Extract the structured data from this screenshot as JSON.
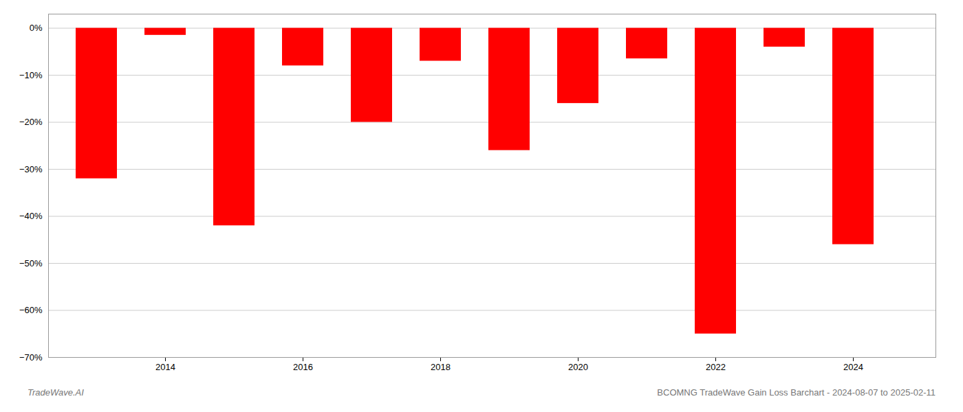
{
  "chart_data": {
    "type": "bar",
    "x": [
      2013,
      2014,
      2015,
      2016,
      2017,
      2018,
      2019,
      2020,
      2021,
      2022,
      2023,
      2024
    ],
    "values": [
      -32.0,
      -1.5,
      -42.0,
      -8.0,
      -20.0,
      -7.0,
      -26.0,
      -16.0,
      -6.5,
      -65.0,
      -4.0,
      -46.0
    ],
    "color": "#ff0000",
    "xlim": [
      2012.3,
      2025.2
    ],
    "xticks": [
      2014,
      2016,
      2018,
      2020,
      2022,
      2024
    ],
    "ylim": [
      -70,
      3
    ],
    "yticks": [
      {
        "value": 0,
        "label": "0%"
      },
      {
        "value": -10,
        "label": "−10%"
      },
      {
        "value": -20,
        "label": "−20%"
      },
      {
        "value": -30,
        "label": "−30%"
      },
      {
        "value": -40,
        "label": "−40%"
      },
      {
        "value": -50,
        "label": "−50%"
      },
      {
        "value": -60,
        "label": "−60%"
      },
      {
        "value": -70,
        "label": "−70%"
      }
    ],
    "grid": true,
    "annotations": [
      "TradeWave.AI",
      "BCOMNG TradeWave Gain Loss Barchart - 2024-08-07 to 2025-02-11"
    ]
  }
}
